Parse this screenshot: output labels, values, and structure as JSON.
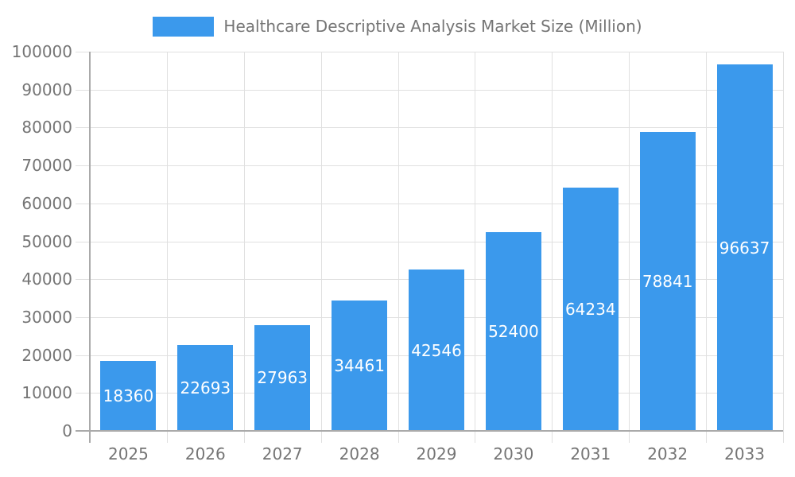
{
  "chart_data": {
    "type": "bar",
    "title": "Healthcare Descriptive Analysis Market Size (Million)",
    "categories": [
      "2025",
      "2026",
      "2027",
      "2028",
      "2029",
      "2030",
      "2031",
      "2032",
      "2033"
    ],
    "values": [
      18360,
      22693,
      27963,
      34461,
      42546,
      52400,
      64234,
      78841,
      96637
    ],
    "xlabel": "",
    "ylabel": "",
    "ylim": [
      0,
      100000
    ],
    "ytick_interval": 10000,
    "yticks": [
      0,
      10000,
      20000,
      30000,
      40000,
      50000,
      60000,
      70000,
      80000,
      90000,
      100000
    ],
    "grid": true,
    "legend_position": "top",
    "value_label_position": "inside-center",
    "colors": {
      "bar": "#3b99ec",
      "value_label": "#ffffff",
      "axis": "#aaaaaa",
      "grid": "#e0e0e0",
      "text": "#757575",
      "background": "#ffffff"
    }
  }
}
